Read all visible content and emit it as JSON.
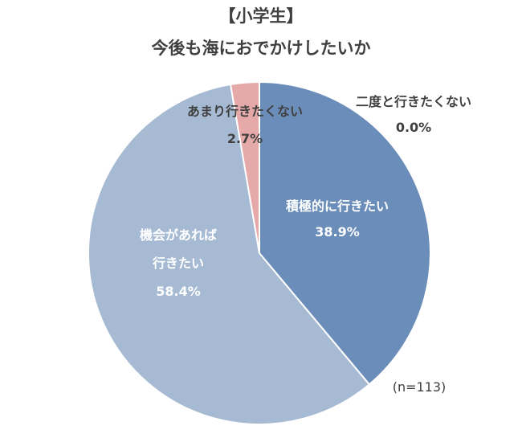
{
  "chart_data": {
    "type": "pie",
    "title": "【小学生】",
    "subtitle": "今後も海におでかけしたいか",
    "note": "(n=113)",
    "slices": [
      {
        "label": [
          "積極的に行きたい"
        ],
        "value": 38.9,
        "pct": "38.9%",
        "color": "#6b8db9",
        "text_color": "#ffffff"
      },
      {
        "label": [
          "機会があれば",
          "行きたい"
        ],
        "value": 58.4,
        "pct": "58.4%",
        "color": "#a6bad3",
        "text_color": "#ffffff"
      },
      {
        "label": [
          "あまり行きたくない"
        ],
        "value": 2.7,
        "pct": "2.7%",
        "color": "#e6a9aa",
        "text_color": "#404040"
      },
      {
        "label": [
          "二度と行きたくない"
        ],
        "value": 0.0,
        "pct": "0.0%",
        "color": "#c0504d",
        "text_color": "#404040"
      }
    ]
  }
}
